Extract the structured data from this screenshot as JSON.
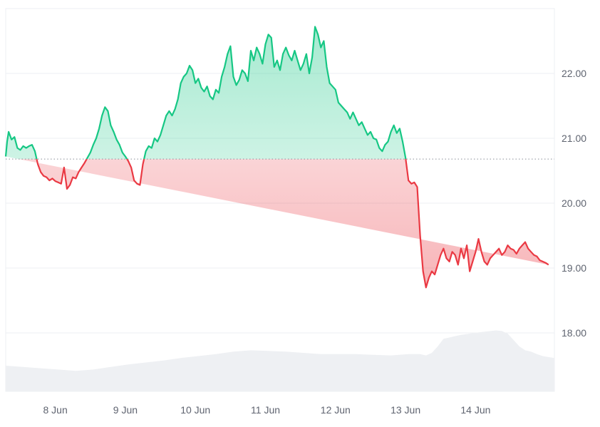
{
  "chart_data": {
    "type": "line",
    "title": "",
    "xlabel": "",
    "ylabel": "",
    "ylim": [
      17.0,
      22.9
    ],
    "xlim": [
      "7 Jun 07:00",
      "14 Jun 21:00"
    ],
    "baseline": 20.68,
    "colors": {
      "up_line": "#16c784",
      "down_line": "#ea3943",
      "up_fill_top": "#16c784",
      "down_fill_bottom": "#ea3943",
      "volume_fill": "#eef0f3",
      "grid": "#eceff3",
      "baseline_dots": "#8a8f99"
    },
    "y_ticks": [
      {
        "value": 18.0,
        "label": "18.00"
      },
      {
        "value": 19.0,
        "label": "19.00"
      },
      {
        "value": 20.0,
        "label": "20.00"
      },
      {
        "value": 21.0,
        "label": "21.00"
      },
      {
        "value": 22.0,
        "label": "22.00"
      }
    ],
    "x_ticks": [
      {
        "x": "8 Jun",
        "label": "8 Jun"
      },
      {
        "x": "9 Jun",
        "label": "9 Jun"
      },
      {
        "x": "10 Jun",
        "label": "10 Jun"
      },
      {
        "x": "11 Jun",
        "label": "11 Jun"
      },
      {
        "x": "12 Jun",
        "label": "12 Jun"
      },
      {
        "x": "13 Jun",
        "label": "13 Jun"
      },
      {
        "x": "14 Jun",
        "label": "14 Jun"
      }
    ],
    "price": {
      "x_hours_from_start": [
        0,
        0.5,
        1,
        2,
        3,
        4,
        5,
        6,
        7,
        8,
        9,
        10,
        11,
        12,
        13,
        14,
        15,
        16,
        17,
        18,
        19,
        20,
        21,
        22,
        23,
        24,
        25,
        26,
        27,
        28,
        29,
        30,
        31,
        32,
        33,
        34,
        35,
        36,
        37,
        38,
        39,
        40,
        41,
        42,
        43,
        44,
        45,
        46,
        47,
        48,
        49,
        50,
        51,
        52,
        53,
        54,
        55,
        56,
        57,
        58,
        59,
        60,
        61,
        62,
        63,
        64,
        65,
        66,
        67,
        68,
        69,
        70,
        71,
        72,
        73,
        74,
        75,
        76,
        77,
        78,
        79,
        80,
        81,
        82,
        83,
        84,
        85,
        86,
        87,
        88,
        89,
        90,
        91,
        92,
        93,
        94,
        95,
        96,
        97,
        98,
        99,
        100,
        101,
        102,
        103,
        104,
        105,
        106,
        107,
        108,
        109,
        110,
        111,
        112,
        113,
        114,
        115,
        116,
        117,
        118,
        119,
        120,
        121,
        122,
        123,
        124,
        125,
        126,
        127,
        128,
        129,
        130,
        131,
        132,
        133,
        134,
        135,
        136,
        137,
        138,
        139,
        140,
        141,
        142,
        143,
        144,
        145,
        146,
        147,
        148,
        149,
        150,
        151,
        152,
        153,
        154,
        155,
        156,
        157,
        158,
        159,
        160,
        161,
        162,
        163,
        164,
        165,
        166,
        167,
        168,
        169,
        170,
        171,
        172,
        173,
        174,
        175,
        176,
        177,
        178,
        179,
        180,
        181,
        182,
        183,
        184,
        185,
        186,
        187,
        188
      ],
      "values": [
        20.72,
        20.95,
        21.1,
        20.98,
        21.02,
        20.85,
        20.82,
        20.88,
        20.85,
        20.88,
        20.9,
        20.8,
        20.6,
        20.48,
        20.42,
        20.4,
        20.35,
        20.38,
        20.34,
        20.32,
        20.3,
        20.55,
        20.22,
        20.28,
        20.4,
        20.38,
        20.48,
        20.55,
        20.62,
        20.7,
        20.78,
        20.9,
        21.0,
        21.15,
        21.35,
        21.48,
        21.42,
        21.2,
        21.1,
        20.98,
        20.9,
        20.78,
        20.72,
        20.65,
        20.55,
        20.35,
        20.3,
        20.28,
        20.6,
        20.8,
        20.88,
        20.85,
        21.0,
        20.95,
        21.05,
        21.2,
        21.35,
        21.42,
        21.35,
        21.45,
        21.6,
        21.85,
        21.95,
        22.0,
        22.12,
        22.05,
        21.85,
        21.92,
        21.78,
        21.72,
        21.8,
        21.65,
        21.6,
        21.75,
        21.7,
        21.95,
        22.1,
        22.3,
        22.42,
        21.95,
        21.82,
        21.9,
        22.05,
        22.0,
        21.88,
        22.35,
        22.2,
        22.4,
        22.3,
        22.15,
        22.45,
        22.6,
        22.55,
        22.1,
        22.2,
        22.05,
        22.3,
        22.4,
        22.28,
        22.2,
        22.35,
        22.2,
        22.05,
        22.15,
        22.3,
        22.0,
        22.25,
        22.72,
        22.6,
        22.4,
        22.5,
        22.1,
        21.85,
        21.8,
        21.75,
        21.55,
        21.5,
        21.45,
        21.4,
        21.3,
        21.4,
        21.3,
        21.2,
        21.25,
        21.15,
        21.05,
        21.1,
        21.0,
        20.98,
        20.85,
        20.8,
        20.9,
        20.95,
        21.1,
        21.2,
        21.08,
        21.15,
        20.95,
        20.7,
        20.35,
        20.3,
        20.32,
        20.25,
        19.5,
        18.95,
        18.7,
        18.85,
        18.95,
        18.9,
        19.05,
        19.2,
        19.3,
        19.15,
        19.1,
        19.25,
        19.2,
        19.05,
        19.3,
        19.15,
        19.35,
        18.95,
        19.1,
        19.25,
        19.45,
        19.25,
        19.1,
        19.05,
        19.15,
        19.2,
        19.25,
        19.3,
        19.2,
        19.25,
        19.35,
        19.3,
        19.28,
        19.22,
        19.3,
        19.35,
        19.4,
        19.3,
        19.25,
        19.2,
        19.18,
        19.12,
        19.1,
        19.08,
        19.05
      ]
    },
    "volume": {
      "x_hours_from_start": [
        0,
        6,
        12,
        18,
        24,
        30,
        36,
        42,
        48,
        54,
        60,
        66,
        72,
        78,
        84,
        90,
        96,
        102,
        108,
        114,
        120,
        126,
        132,
        138,
        142,
        144,
        146,
        148,
        150,
        156,
        162,
        168,
        170,
        172,
        174,
        176,
        178,
        180,
        182,
        184,
        188
      ],
      "values": [
        0.4,
        0.38,
        0.36,
        0.34,
        0.32,
        0.34,
        0.38,
        0.42,
        0.45,
        0.48,
        0.52,
        0.55,
        0.58,
        0.62,
        0.64,
        0.63,
        0.62,
        0.6,
        0.58,
        0.58,
        0.58,
        0.57,
        0.56,
        0.58,
        0.58,
        0.56,
        0.6,
        0.7,
        0.82,
        0.88,
        0.92,
        0.95,
        0.94,
        0.9,
        0.8,
        0.7,
        0.64,
        0.62,
        0.58,
        0.55,
        0.52
      ]
    }
  }
}
